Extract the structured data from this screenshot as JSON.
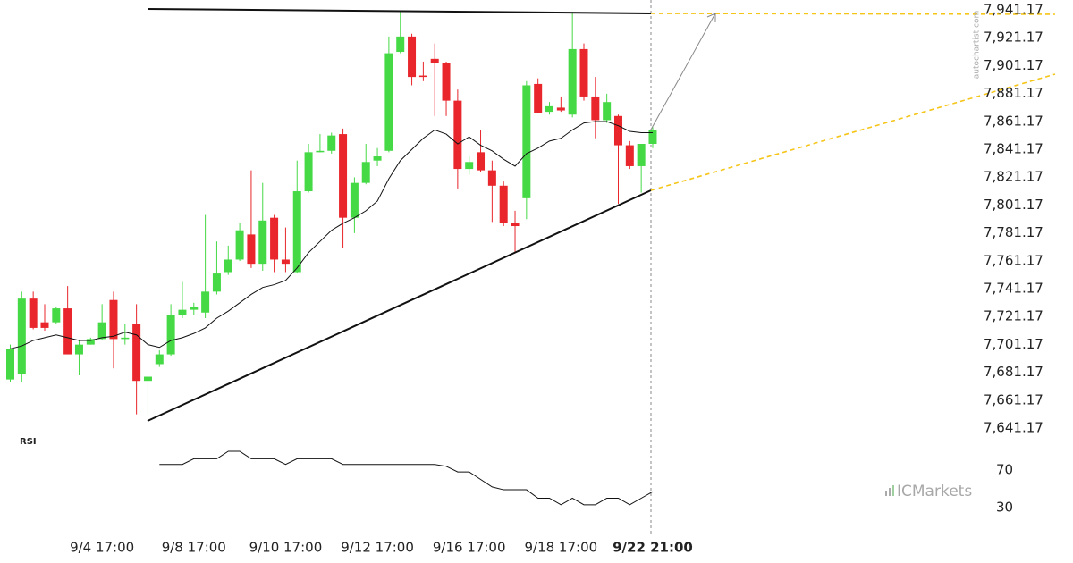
{
  "chart_data": {
    "type": "candlestick",
    "categories": [
      null,
      null,
      null,
      null,
      null,
      null,
      null,
      null,
      "9/4 17:00",
      null,
      null,
      null,
      null,
      null,
      null,
      null,
      "9/8 17:00",
      null,
      null,
      null,
      null,
      null,
      null,
      null,
      "9/10 17:00",
      null,
      null,
      null,
      null,
      null,
      null,
      null,
      "9/12 17:00",
      null,
      null,
      null,
      null,
      null,
      null,
      null,
      "9/16 17:00",
      null,
      null,
      null,
      null,
      null,
      null,
      null,
      "9/18 17:00",
      null,
      null,
      null,
      null,
      null,
      null,
      null,
      "9/22 21:00"
    ],
    "open": [
      7676,
      7680,
      7734,
      7717,
      7717,
      7727,
      7694,
      7701,
      7705,
      7733,
      7705,
      7716,
      7675,
      7687,
      7694,
      7722,
      7726,
      7724,
      7739,
      7753,
      7762,
      7780,
      7759,
      7792,
      7762,
      7753,
      7811,
      7839,
      7840,
      7852,
      7792,
      7817,
      7833,
      7840,
      7911,
      7922,
      7894,
      7906,
      7903,
      7876,
      7827,
      7839,
      7826,
      7815,
      7788,
      7806,
      7888,
      7868,
      7871,
      7866,
      7913,
      7879,
      7862,
      7865,
      7844,
      7829,
      7845
    ],
    "high": [
      7701,
      7739,
      7739,
      7730,
      7728,
      7743,
      7704,
      7706,
      7730,
      7739,
      7716,
      7730,
      7680,
      7697,
      7730,
      7746,
      7731,
      7794,
      7775,
      7772,
      7788,
      7826,
      7817,
      7794,
      7785,
      7833,
      7845,
      7852,
      7853,
      7856,
      7821,
      7845,
      7842,
      7922,
      7940,
      7924,
      7904,
      7917,
      7904,
      7884,
      7836,
      7855,
      7833,
      7818,
      7797,
      7890,
      7892,
      7875,
      7879,
      7939,
      7917,
      7893,
      7881,
      7866,
      7847,
      7845,
      7857
    ],
    "low": [
      7674,
      7674,
      7712,
      7711,
      7716,
      7694,
      7679,
      7701,
      7704,
      7684,
      7701,
      7651,
      7651,
      7685,
      7693,
      7720,
      7722,
      7720,
      7737,
      7751,
      7761,
      7756,
      7754,
      7753,
      7753,
      7752,
      7810,
      7839,
      7838,
      7770,
      7781,
      7816,
      7829,
      7839,
      7910,
      7887,
      7890,
      7865,
      7865,
      7813,
      7823,
      7825,
      7789,
      7786,
      7767,
      7791,
      7867,
      7866,
      7868,
      7864,
      7876,
      7849,
      7860,
      7802,
      7827,
      7810,
      7842
    ],
    "close": [
      7698,
      7734,
      7713,
      7713,
      7727,
      7694,
      7701,
      7705,
      7717,
      7705,
      7706,
      7675,
      7678,
      7694,
      7722,
      7726,
      7728,
      7739,
      7752,
      7762,
      7783,
      7759,
      7790,
      7762,
      7759,
      7811,
      7839,
      7840,
      7851,
      7792,
      7817,
      7832,
      7836,
      7910,
      7922,
      7893,
      7893,
      7903,
      7876,
      7827,
      7832,
      7826,
      7815,
      7788,
      7786,
      7887,
      7867,
      7872,
      7869,
      7913,
      7879,
      7862,
      7875,
      7844,
      7829,
      7845,
      7855
    ],
    "up_color": "#46d946",
    "down_color": "#e8262b",
    "moving_average": {
      "color": "#111111",
      "values": [
        7698,
        7700,
        7704,
        7706,
        7708,
        7706,
        7704,
        7704,
        7706,
        7707,
        7710,
        7708,
        7701,
        7699,
        7704,
        7706,
        7709,
        7713,
        7720,
        7725,
        7731,
        7737,
        7742,
        7744,
        7747,
        7756,
        7767,
        7775,
        7783,
        7788,
        7792,
        7797,
        7804,
        7820,
        7833,
        7841,
        7849,
        7855,
        7852,
        7845,
        7850,
        7844,
        7840,
        7834,
        7829,
        7838,
        7842,
        7847,
        7849,
        7855,
        7860,
        7861,
        7861,
        7858,
        7854,
        7853,
        7853
      ]
    },
    "ylim": [
      7634.1,
      7948.2
    ],
    "yticks": [
      {
        "value": 7941.17,
        "label": "7,941.17"
      },
      {
        "value": 7921.17,
        "label": "7,921.17"
      },
      {
        "value": 7901.17,
        "label": "7,901.17"
      },
      {
        "value": 7881.17,
        "label": "7,881.17"
      },
      {
        "value": 7861.17,
        "label": "7,861.17"
      },
      {
        "value": 7841.17,
        "label": "7,841.17"
      },
      {
        "value": 7821.17,
        "label": "7,821.17"
      },
      {
        "value": 7801.17,
        "label": "7,801.17"
      },
      {
        "value": 7781.17,
        "label": "7,781.17"
      },
      {
        "value": 7761.17,
        "label": "7,761.17"
      },
      {
        "value": 7741.17,
        "label": "7,741.17"
      },
      {
        "value": 7721.17,
        "label": "7,721.17"
      },
      {
        "value": 7701.17,
        "label": "7,701.17"
      },
      {
        "value": 7681.17,
        "label": "7,681.17"
      },
      {
        "value": 7661.17,
        "label": "7,661.17"
      },
      {
        "value": 7641.17,
        "label": "7,641.17"
      }
    ],
    "rsi": {
      "label": "RSI",
      "color": "#111111",
      "values": [
        null,
        null,
        null,
        null,
        null,
        null,
        null,
        null,
        null,
        null,
        null,
        null,
        null,
        76,
        76,
        76,
        82,
        82,
        82,
        90,
        90,
        82,
        82,
        82,
        76,
        82,
        82,
        82,
        82,
        76,
        76,
        76,
        76,
        76,
        76,
        76,
        76,
        76,
        74,
        68,
        68,
        60,
        52,
        49,
        49,
        49,
        40,
        40,
        33,
        40,
        33,
        33,
        40,
        40,
        33,
        40,
        47
      ],
      "ylim": [
        0,
        100
      ],
      "yticks": [
        70,
        30
      ]
    },
    "watermark": "autochartist.com",
    "brand": "ICMarkets"
  }
}
